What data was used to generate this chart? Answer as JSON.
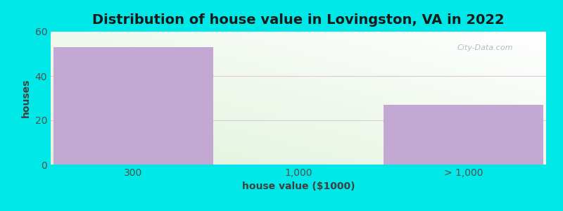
{
  "title": "Distribution of house value in Lovingston, VA in 2022",
  "xlabel": "house value ($1000)",
  "ylabel": "houses",
  "categories": [
    "300",
    "1,000",
    "> 1,000"
  ],
  "values": [
    53,
    0,
    27
  ],
  "bar_color": "#c4a8d4",
  "background_outer": "#00e8e8",
  "ylim": [
    0,
    60
  ],
  "yticks": [
    0,
    20,
    40,
    60
  ],
  "title_fontsize": 14,
  "axis_label_fontsize": 10,
  "tick_fontsize": 10,
  "watermark": "City-Data.com",
  "grid_color": "#e0c8d8",
  "grid_linewidth": 0.8
}
